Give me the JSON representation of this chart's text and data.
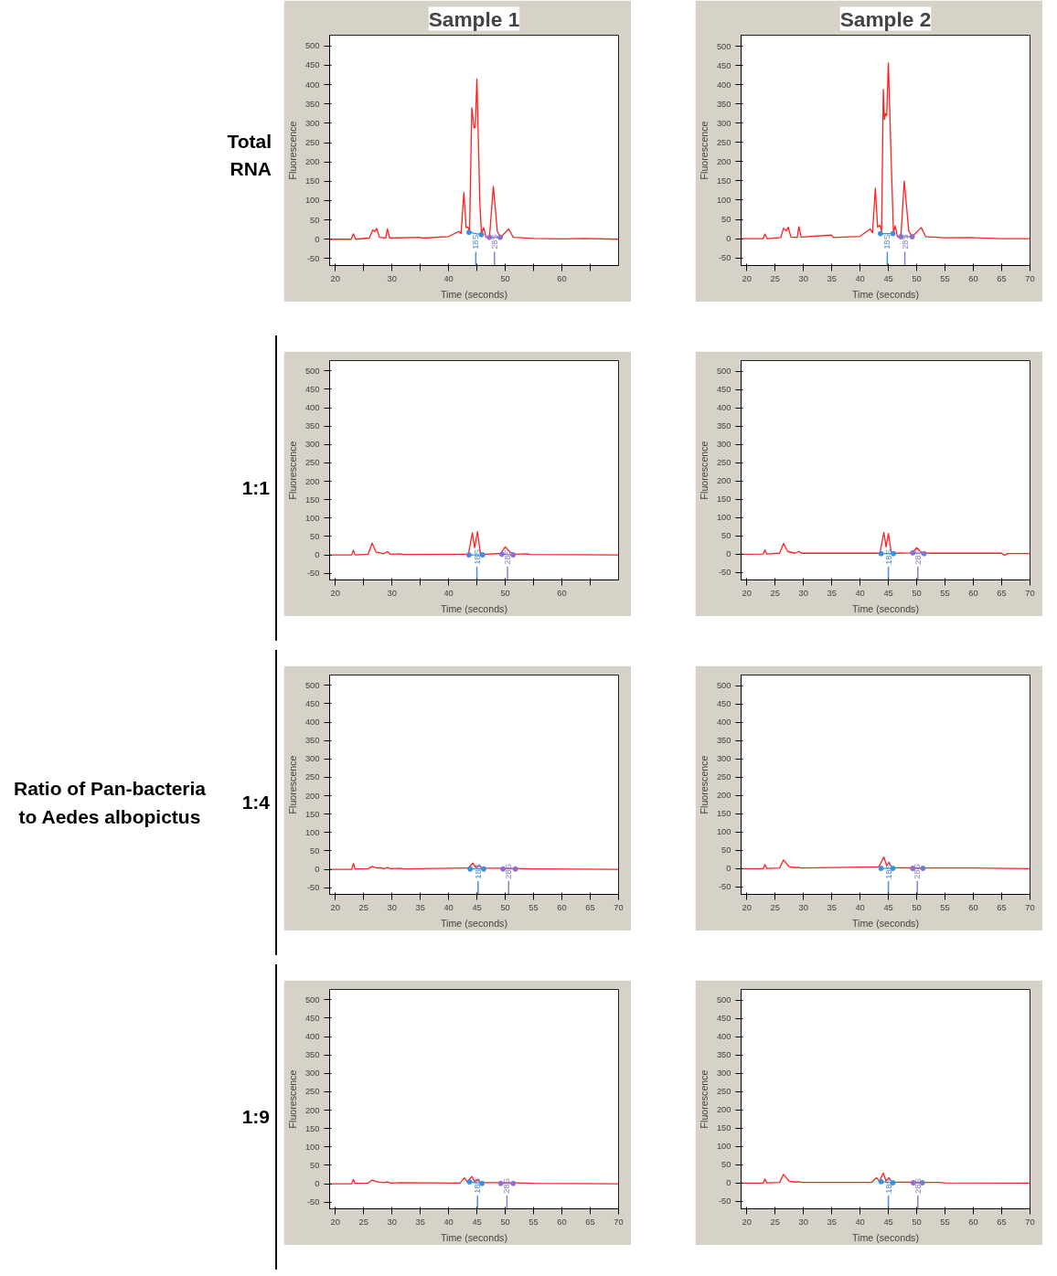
{
  "chart_data": [
    {
      "type": "line",
      "title": "Sample 1",
      "xlabel": "Time (seconds)",
      "ylabel": "Fluorescence",
      "xlim": [
        19,
        70
      ],
      "ylim": [
        -68,
        528
      ],
      "xticks": [
        20,
        {
          "value": 25,
          "label": null
        },
        30,
        {
          "value": 35,
          "label": null
        },
        40,
        {
          "value": 45,
          "label": null
        },
        50,
        {
          "value": 55,
          "label": null
        },
        60,
        {
          "value": 65,
          "label": null
        }
      ],
      "yticks": [
        -50,
        0,
        50,
        100,
        150,
        200,
        250,
        300,
        350,
        400,
        450,
        500
      ],
      "grid": false,
      "line_style": "solid",
      "annotations": [
        "Total RNA"
      ],
      "ref_lines": [
        {
          "axis": "x",
          "value": 44.8,
          "label": "18S",
          "color": "#4f8fd8"
        },
        {
          "axis": "x",
          "value": 48.1,
          "label": "28S",
          "color": "#8a7fc8"
        }
      ],
      "series": [
        {
          "color": "#ff2020",
          "marker": "none",
          "x": [
            19,
            22.8,
            23.2,
            23.6,
            26,
            26.6,
            27,
            27.3,
            27.8,
            28.9,
            29.2,
            29.6,
            35,
            35.3,
            40,
            41.8,
            42.2,
            42.7,
            43.1,
            43.4,
            43.7,
            44.1,
            44.5,
            44.7,
            45,
            45.5,
            45.8,
            46.2,
            46.6,
            47.2,
            47.9,
            48.6,
            49.2,
            50.6,
            51.4,
            55,
            60,
            64,
            70
          ],
          "values": [
            0,
            0,
            14,
            0,
            3,
            24,
            20,
            28,
            5,
            3,
            27,
            3,
            5,
            3,
            7,
            20,
            15,
            121,
            30,
            32,
            20,
            340,
            288,
            290,
            415,
            100,
            15,
            30,
            5,
            3,
            137,
            20,
            5,
            27,
            5,
            2,
            1,
            2,
            0
          ]
        },
        {
          "color": "#3b8ee8",
          "marker": "circle",
          "x": [
            43.6,
            45.8
          ],
          "values": [
            18,
            12
          ]
        },
        {
          "color": "#8a6fd1",
          "marker": "circle",
          "x": [
            47.2,
            49.1
          ],
          "values": [
            5,
            5
          ]
        }
      ]
    },
    {
      "type": "line",
      "title": "Sample 2",
      "xlabel": "Time (seconds)",
      "ylabel": "Fluorescence",
      "xlim": [
        19,
        70
      ],
      "ylim": [
        -70,
        529
      ],
      "xticks": [
        20,
        25,
        30,
        35,
        40,
        45,
        50,
        55,
        60,
        65,
        70
      ],
      "yticks": [
        -50,
        0,
        50,
        100,
        150,
        200,
        250,
        300,
        350,
        400,
        450,
        500
      ],
      "grid": false,
      "line_style": "solid",
      "ref_lines": [
        {
          "axis": "x",
          "value": 44.8,
          "label": "18S",
          "color": "#4f8fd8"
        },
        {
          "axis": "x",
          "value": 47.9,
          "label": "28S",
          "color": "#8a7fc8"
        }
      ],
      "series": [
        {
          "color": "#ff2020",
          "marker": "none",
          "x": [
            19,
            22.9,
            23.2,
            23.6,
            26,
            26.5,
            27,
            27.3,
            27.8,
            28.9,
            29.2,
            29.6,
            35,
            35.3,
            40,
            41.8,
            42.2,
            42.7,
            43.1,
            43.5,
            43.8,
            44.1,
            44.3,
            44.5,
            44.7,
            45,
            45.5,
            45.9,
            46.2,
            46.6,
            47.2,
            47.8,
            48.6,
            49.2,
            50.8,
            51.6,
            55,
            59.5,
            60.3,
            65,
            70
          ],
          "values": [
            0,
            0,
            12,
            0,
            3,
            27,
            20,
            30,
            4,
            3,
            31,
            4,
            9,
            3,
            6,
            25,
            15,
            131,
            30,
            35,
            20,
            388,
            310,
            325,
            320,
            457,
            200,
            15,
            33,
            5,
            3,
            150,
            20,
            5,
            29,
            5,
            2,
            3,
            2,
            0,
            0
          ]
        },
        {
          "color": "#3b8ee8",
          "marker": "circle",
          "x": [
            43.6,
            45.8
          ],
          "values": [
            13,
            13
          ]
        },
        {
          "color": "#8a6fd1",
          "marker": "circle",
          "x": [
            47.2,
            49.2
          ],
          "values": [
            5,
            5
          ]
        }
      ]
    },
    {
      "type": "line",
      "xlabel": "Time (seconds)",
      "ylabel": "Fluorescence",
      "xlim": [
        19,
        70
      ],
      "ylim": [
        -68,
        528
      ],
      "xticks": [
        20,
        {
          "value": 25,
          "label": null
        },
        30,
        {
          "value": 35,
          "label": null
        },
        40,
        {
          "value": 45,
          "label": null
        },
        50,
        {
          "value": 55,
          "label": null
        },
        60,
        {
          "value": 65,
          "label": null
        }
      ],
      "yticks": [
        -50,
        0,
        50,
        100,
        150,
        200,
        250,
        300,
        350,
        400,
        450,
        500
      ],
      "grid": false,
      "line_style": "solid",
      "annotations": [
        "1:1"
      ],
      "ref_lines": [
        {
          "axis": "x",
          "value": 45,
          "label": "18S",
          "color": "#4f8fd8"
        },
        {
          "axis": "x",
          "value": 50.4,
          "label": "28S",
          "color": "#8a7fc8"
        }
      ],
      "series": [
        {
          "color": "#ff2020",
          "marker": "none",
          "x": [
            19,
            22.9,
            23.2,
            23.5,
            25.8,
            26.5,
            27.2,
            28.5,
            29.2,
            29.7,
            31.5,
            32,
            43.5,
            44.2,
            44.6,
            45.1,
            45.6,
            46.5,
            49.2,
            50,
            50.8,
            51.5,
            53.8,
            54.5,
            70
          ],
          "values": [
            0,
            0,
            13,
            0,
            2,
            32,
            8,
            3,
            9,
            2,
            3,
            1,
            2,
            60,
            20,
            63,
            5,
            2,
            4,
            22,
            8,
            2,
            3,
            1,
            0
          ]
        },
        {
          "color": "#3b8ee8",
          "marker": "circle",
          "x": [
            43.6,
            46
          ],
          "values": [
            0,
            0
          ]
        },
        {
          "color": "#8a6fd1",
          "marker": "circle",
          "x": [
            49.4,
            51.4
          ],
          "values": [
            2,
            0
          ]
        }
      ]
    },
    {
      "type": "line",
      "xlabel": "Time (seconds)",
      "ylabel": "Fluorescence",
      "xlim": [
        19,
        70
      ],
      "ylim": [
        -70,
        529
      ],
      "xticks": [
        20,
        25,
        30,
        35,
        40,
        45,
        50,
        55,
        60,
        65,
        70
      ],
      "yticks": [
        -50,
        0,
        50,
        100,
        150,
        200,
        250,
        300,
        350,
        400,
        450,
        500
      ],
      "grid": false,
      "line_style": "solid",
      "ref_lines": [
        {
          "axis": "x",
          "value": 45,
          "label": "18S",
          "color": "#4f8fd8"
        },
        {
          "axis": "x",
          "value": 50.2,
          "label": "28S",
          "color": "#8a7fc8"
        }
      ],
      "series": [
        {
          "color": "#ff2020",
          "marker": "none",
          "x": [
            19,
            22.9,
            23.2,
            23.5,
            25.8,
            26.5,
            27.2,
            28.5,
            29.2,
            29.7,
            31.5,
            43.5,
            44.2,
            44.6,
            45,
            45.5,
            46.5,
            49.2,
            50,
            50.8,
            51.5,
            60,
            65,
            65.5,
            66,
            70
          ],
          "values": [
            0,
            1,
            12,
            1,
            3,
            30,
            8,
            3,
            8,
            3,
            3,
            3,
            60,
            20,
            57,
            5,
            3,
            4,
            18,
            6,
            3,
            3,
            3,
            -3,
            2,
            2
          ]
        },
        {
          "color": "#3b8ee8",
          "marker": "circle",
          "x": [
            43.7,
            45.9
          ],
          "values": [
            2,
            2
          ]
        },
        {
          "color": "#8a6fd1",
          "marker": "circle",
          "x": [
            49.3,
            51.3
          ],
          "values": [
            4,
            2
          ]
        }
      ]
    },
    {
      "type": "line",
      "xlabel": "Time (seconds)",
      "ylabel": "Fluorescence",
      "xlim": [
        19,
        70
      ],
      "ylim": [
        -68,
        528
      ],
      "xticks": [
        20,
        25,
        30,
        35,
        40,
        45,
        50,
        55,
        60,
        65,
        70
      ],
      "yticks": [
        -50,
        0,
        50,
        100,
        150,
        200,
        250,
        300,
        350,
        400,
        450,
        500
      ],
      "grid": false,
      "line_style": "solid",
      "annotations": [
        "1:4",
        "Ratio of Pan-bacteria to Aedes albopictus"
      ],
      "ref_lines": [
        {
          "axis": "x",
          "value": 45.2,
          "label": "18S",
          "color": "#4f8fd8"
        },
        {
          "axis": "x",
          "value": 50.6,
          "label": "28S",
          "color": "#8a7fc8"
        }
      ],
      "series": [
        {
          "color": "#ff2020",
          "marker": "none",
          "x": [
            19,
            22.9,
            23.2,
            23.5,
            25.8,
            26.5,
            27.2,
            28,
            28.6,
            29.2,
            29.8,
            31.5,
            32,
            43.5,
            44.3,
            44.8,
            45.3,
            46,
            50,
            55,
            70
          ],
          "values": [
            0,
            0,
            16,
            1,
            2,
            8,
            4,
            4,
            2,
            5,
            2,
            3,
            1,
            4,
            17,
            5,
            10,
            3,
            3,
            1,
            0
          ]
        },
        {
          "color": "#3b8ee8",
          "marker": "circle",
          "x": [
            43.8,
            46.2
          ],
          "values": [
            1,
            1
          ]
        },
        {
          "color": "#8a6fd1",
          "marker": "circle",
          "x": [
            49.6,
            51.8
          ],
          "values": [
            1,
            1
          ]
        }
      ]
    },
    {
      "type": "line",
      "xlabel": "Time (seconds)",
      "ylabel": "Fluorescence",
      "xlim": [
        19,
        70
      ],
      "ylim": [
        -70,
        529
      ],
      "xticks": [
        20,
        25,
        30,
        35,
        40,
        45,
        50,
        55,
        60,
        65,
        70
      ],
      "yticks": [
        -50,
        0,
        50,
        100,
        150,
        200,
        250,
        300,
        350,
        400,
        450,
        500
      ],
      "grid": false,
      "line_style": "solid",
      "ref_lines": [
        {
          "axis": "x",
          "value": 45,
          "label": "18S",
          "color": "#4f8fd8"
        },
        {
          "axis": "x",
          "value": 50.1,
          "label": "28S",
          "color": "#8a7fc8"
        }
      ],
      "series": [
        {
          "color": "#ff2020",
          "marker": "none",
          "x": [
            19,
            22.9,
            23.2,
            23.5,
            25.8,
            26.5,
            27.5,
            28.5,
            29,
            29.6,
            43.3,
            44.2,
            44.7,
            45.1,
            45.6,
            50,
            60,
            70
          ],
          "values": [
            0,
            0,
            12,
            1,
            2,
            24,
            5,
            3,
            4,
            2,
            5,
            32,
            8,
            18,
            3,
            2,
            2,
            0
          ]
        },
        {
          "color": "#3b8ee8",
          "marker": "circle",
          "x": [
            43.7,
            45.8
          ],
          "values": [
            1,
            1
          ]
        },
        {
          "color": "#8a6fd1",
          "marker": "circle",
          "x": [
            49.3,
            51.1
          ],
          "values": [
            1,
            1
          ]
        }
      ]
    },
    {
      "type": "line",
      "xlabel": "Time (seconds)",
      "ylabel": "Fluorescence",
      "xlim": [
        19,
        70
      ],
      "ylim": [
        -68,
        528
      ],
      "xticks": [
        20,
        25,
        30,
        35,
        40,
        45,
        50,
        55,
        60,
        65,
        70
      ],
      "yticks": [
        -50,
        0,
        50,
        100,
        150,
        200,
        250,
        300,
        350,
        400,
        450,
        500
      ],
      "grid": false,
      "line_style": "solid",
      "annotations": [
        "1:9"
      ],
      "ref_lines": [
        {
          "axis": "x",
          "value": 45.1,
          "label": "18S",
          "color": "#4f8fd8"
        },
        {
          "axis": "x",
          "value": 50.3,
          "label": "28S",
          "color": "#8a7fc8"
        }
      ],
      "series": [
        {
          "color": "#ff2020",
          "marker": "none",
          "x": [
            19,
            22.9,
            23.2,
            23.5,
            25.8,
            26.5,
            27.5,
            28.5,
            29.2,
            29.8,
            31.5,
            42,
            42.8,
            43.3,
            44.1,
            44.6,
            45.1,
            45.6,
            50,
            54,
            55,
            70
          ],
          "values": [
            0,
            0,
            12,
            1,
            2,
            10,
            5,
            3,
            5,
            2,
            3,
            2,
            16,
            5,
            20,
            5,
            12,
            3,
            3,
            2,
            1,
            0
          ]
        },
        {
          "color": "#3b8ee8",
          "marker": "circle",
          "x": [
            43.7,
            45.9
          ],
          "values": [
            5,
            1
          ]
        },
        {
          "color": "#8a6fd1",
          "marker": "circle",
          "x": [
            49.2,
            51.4
          ],
          "values": [
            1,
            1
          ]
        }
      ]
    },
    {
      "type": "line",
      "xlabel": "Time (seconds)",
      "ylabel": "Fluorescence",
      "xlim": [
        19,
        70
      ],
      "ylim": [
        -70,
        529
      ],
      "xticks": [
        20,
        25,
        30,
        35,
        40,
        45,
        50,
        55,
        60,
        65,
        70
      ],
      "yticks": [
        -50,
        0,
        50,
        100,
        150,
        200,
        250,
        300,
        350,
        400,
        450,
        500
      ],
      "grid": false,
      "line_style": "solid",
      "ref_lines": [
        {
          "axis": "x",
          "value": 45,
          "label": "18S",
          "color": "#4f8fd8"
        },
        {
          "axis": "x",
          "value": 50.2,
          "label": "28S",
          "color": "#8a7fc8"
        }
      ],
      "series": [
        {
          "color": "#ff2020",
          "marker": "none",
          "x": [
            19,
            22.9,
            23.2,
            23.5,
            25.8,
            26.5,
            27.5,
            28.5,
            29.2,
            29.8,
            42,
            42.9,
            43.4,
            44.1,
            44.6,
            45.1,
            45.6,
            54,
            55,
            70
          ],
          "values": [
            0,
            0,
            12,
            1,
            2,
            24,
            5,
            3,
            4,
            2,
            2,
            15,
            5,
            28,
            5,
            15,
            3,
            2,
            1,
            0
          ]
        },
        {
          "color": "#3b8ee8",
          "marker": "circle",
          "x": [
            43.7,
            45.8
          ],
          "values": [
            4,
            1
          ]
        },
        {
          "color": "#8a6fd1",
          "marker": "circle",
          "x": [
            49.4,
            51
          ],
          "values": [
            1,
            1
          ]
        }
      ]
    }
  ]
}
